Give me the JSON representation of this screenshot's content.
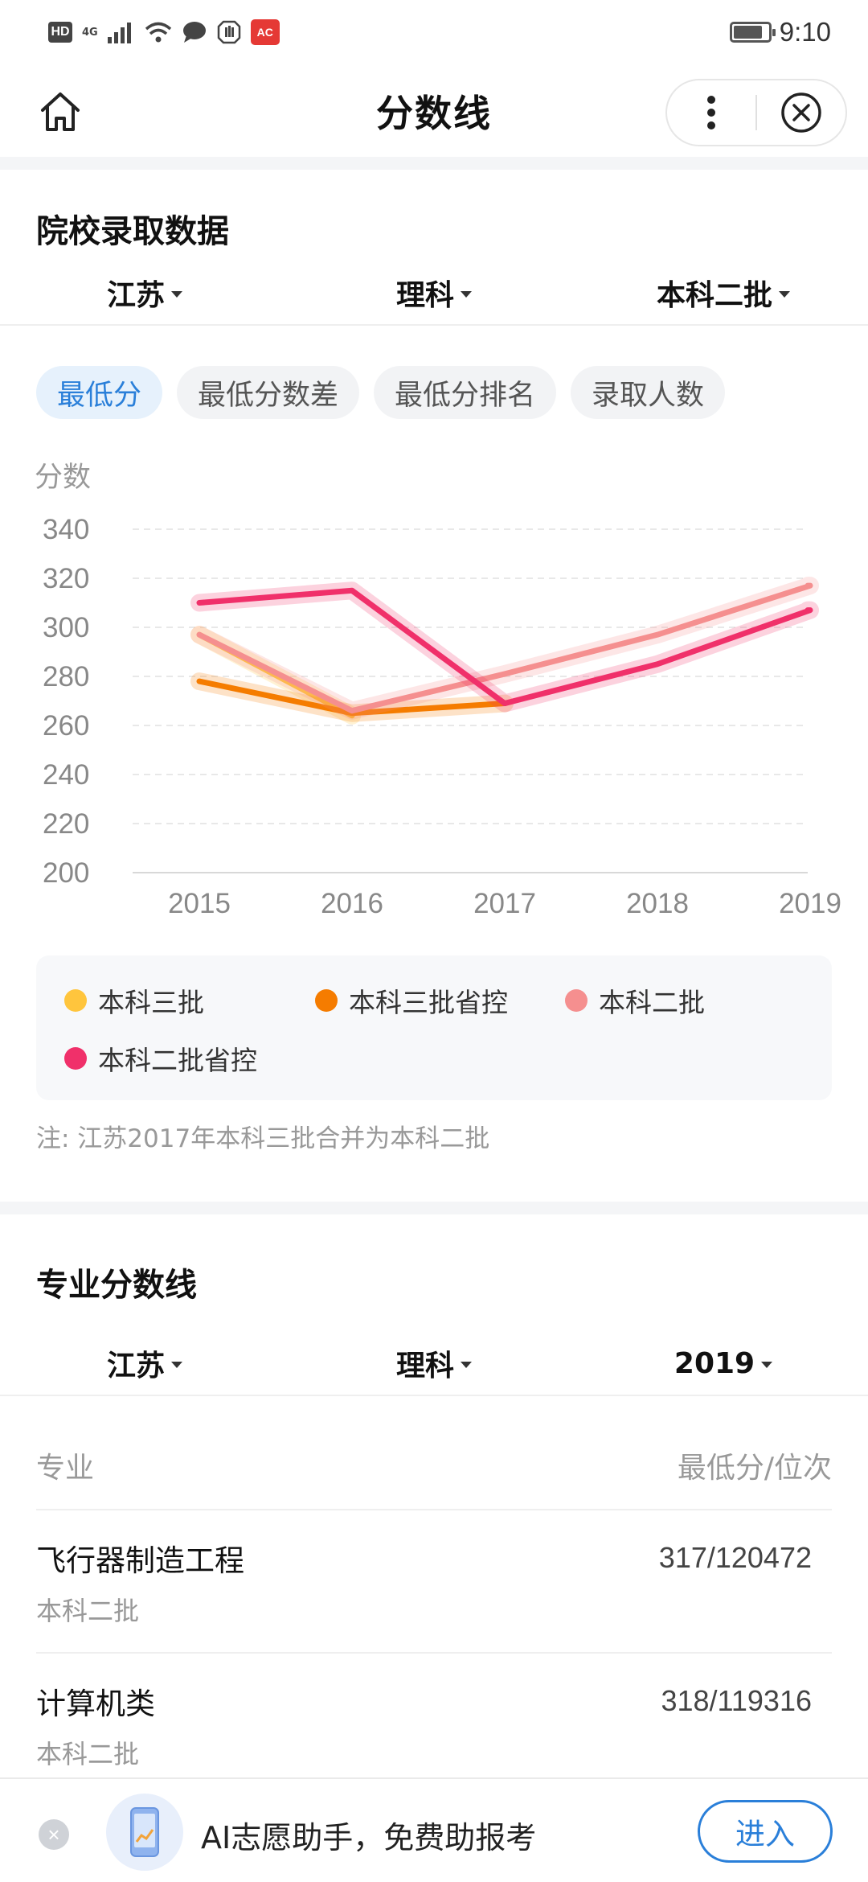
{
  "status_bar": {
    "badge": "HD",
    "network": "4G",
    "time": "9:10",
    "battery_level": 0.76
  },
  "header": {
    "title": "分数线"
  },
  "admission": {
    "title": "院校录取数据",
    "filters": [
      "江苏",
      "理科",
      "本科二批"
    ],
    "tabs": [
      "最低分",
      "最低分数差",
      "最低分排名",
      "录取人数"
    ],
    "active_tab": 0,
    "note": "注: 江苏2017年本科三批合并为本科二批"
  },
  "chart_data": {
    "type": "line",
    "ylabel": "分数",
    "xlabel": "",
    "x": [
      "2015",
      "2016",
      "2017",
      "2018",
      "2019"
    ],
    "ylim": [
      200,
      340
    ],
    "yticks": [
      340,
      320,
      300,
      280,
      260,
      240,
      220,
      200
    ],
    "grid": true,
    "legend_position": "bottom",
    "series": [
      {
        "name": "本科三批",
        "color": "#ffc53d",
        "values": [
          297,
          264,
          null,
          null,
          null
        ]
      },
      {
        "name": "本科三批省控",
        "color": "#f57c00",
        "values": [
          278,
          265,
          269,
          null,
          null
        ]
      },
      {
        "name": "本科二批",
        "color": "#f58f8f",
        "values": [
          297,
          266,
          281,
          297,
          317
        ]
      },
      {
        "name": "本科二批省控",
        "color": "#f0306a",
        "values": [
          310,
          315,
          269,
          285,
          307
        ]
      }
    ]
  },
  "major_scores": {
    "title": "专业分数线",
    "filters": [
      "江苏",
      "理科",
      "2019"
    ],
    "col_major": "专业",
    "col_score": "最低分/位次",
    "rows": [
      {
        "name": "飞行器制造工程",
        "batch": "本科二批",
        "score": "317/120472"
      },
      {
        "name": "计算机类",
        "batch": "本科二批",
        "score": "318/119316"
      }
    ]
  },
  "bottom_banner": {
    "text": "AI志愿助手，免费助报考",
    "button": "进入"
  }
}
